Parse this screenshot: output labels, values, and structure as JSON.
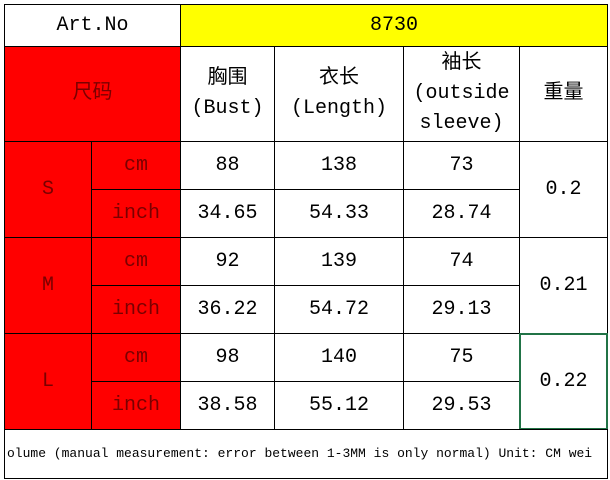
{
  "header": {
    "label": "Art.No",
    "value": "8730"
  },
  "columns": {
    "size": "尺码",
    "headers": [
      [
        "胸围",
        "(Bust)"
      ],
      [
        "衣长",
        "(Length)"
      ],
      [
        "袖长",
        "(outside",
        "sleeve)"
      ],
      [
        "重量"
      ]
    ]
  },
  "sizes": [
    {
      "size": "S",
      "weight": "0.2",
      "rows": [
        {
          "unit": "cm",
          "values": [
            "88",
            "138",
            "73"
          ]
        },
        {
          "unit": "inch",
          "values": [
            "34.65",
            "54.33",
            "28.74"
          ]
        }
      ]
    },
    {
      "size": "M",
      "weight": "0.21",
      "rows": [
        {
          "unit": "cm",
          "values": [
            "92",
            "139",
            "74"
          ]
        },
        {
          "unit": "inch",
          "values": [
            "36.22",
            "54.72",
            "29.13"
          ]
        }
      ]
    },
    {
      "size": "L",
      "weight": "0.22",
      "rows": [
        {
          "unit": "cm",
          "values": [
            "98",
            "140",
            "75"
          ]
        },
        {
          "unit": "inch",
          "values": [
            "38.58",
            "55.12",
            "29.53"
          ]
        }
      ]
    }
  ],
  "note": "olume (manual measurement: error between 1-3MM is only normal) Unit: CM wei"
}
